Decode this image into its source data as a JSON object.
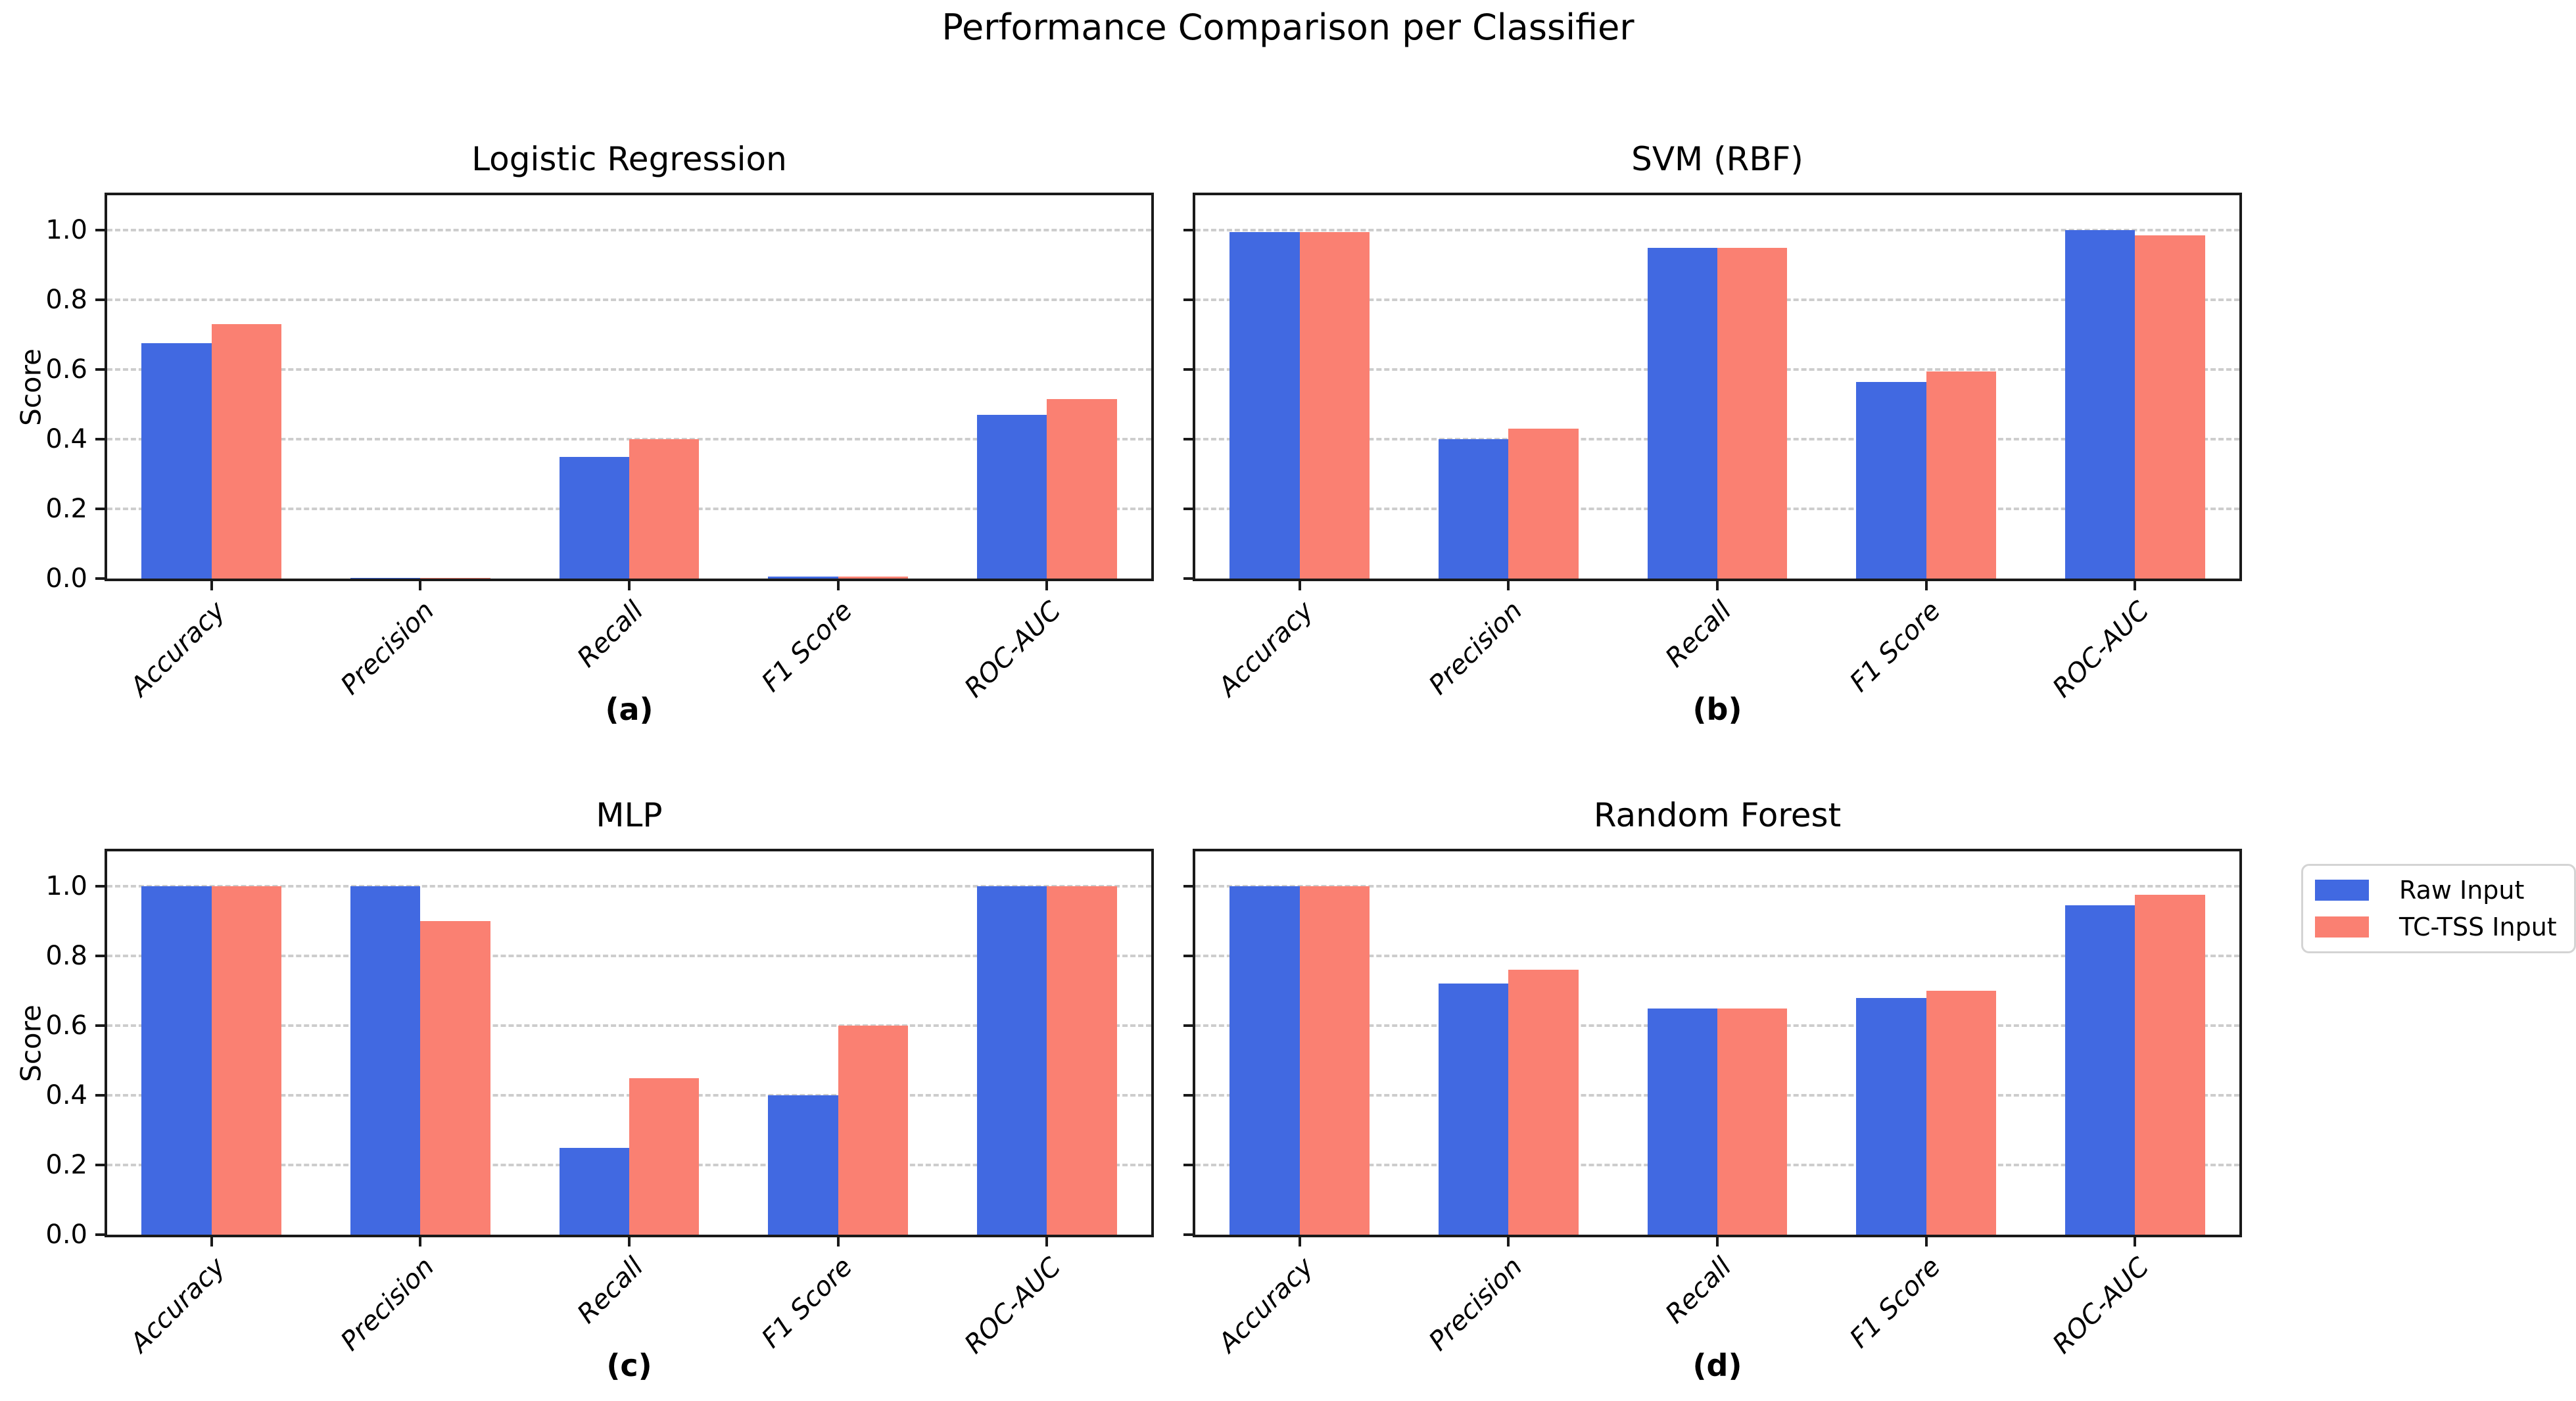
{
  "page": {
    "title": "Performance Comparison per Classifier"
  },
  "axis": {
    "ylabel": "Score",
    "yticks": [
      0.0,
      0.2,
      0.4,
      0.6,
      0.8,
      1.0
    ],
    "ymax": 1.1,
    "grid": "dashed-horizontal"
  },
  "legend": {
    "position": "right-middle",
    "entries": [
      {
        "label": "Raw Input",
        "color": "#4169e1"
      },
      {
        "label": "TC-TSS Input",
        "color": "#fa8072"
      }
    ]
  },
  "chart_data": [
    {
      "type": "bar",
      "title": "Logistic Regression",
      "caption": "(a)",
      "ylabel": "Score",
      "show_ytick_labels": true,
      "categories": [
        "Accuracy",
        "Precision",
        "Recall",
        "F1 Score",
        "ROC-AUC"
      ],
      "series": [
        {
          "name": "Raw Input",
          "color": "#4169e1",
          "values": [
            0.675,
            0.0,
            0.35,
            0.005,
            0.47
          ]
        },
        {
          "name": "TC-TSS Input",
          "color": "#fa8072",
          "values": [
            0.73,
            0.0,
            0.4,
            0.005,
            0.515
          ]
        }
      ],
      "ylim": [
        0,
        1.1
      ],
      "yticks": [
        0.0,
        0.2,
        0.4,
        0.6,
        0.8,
        1.0
      ]
    },
    {
      "type": "bar",
      "title": "SVM (RBF)",
      "caption": "(b)",
      "show_ytick_labels": false,
      "categories": [
        "Accuracy",
        "Precision",
        "Recall",
        "F1 Score",
        "ROC-AUC"
      ],
      "series": [
        {
          "name": "Raw Input",
          "color": "#4169e1",
          "values": [
            0.995,
            0.4,
            0.95,
            0.565,
            1.0
          ]
        },
        {
          "name": "TC-TSS Input",
          "color": "#fa8072",
          "values": [
            0.995,
            0.43,
            0.95,
            0.595,
            0.985
          ]
        }
      ],
      "ylim": [
        0,
        1.1
      ],
      "yticks": [
        0.0,
        0.2,
        0.4,
        0.6,
        0.8,
        1.0
      ]
    },
    {
      "type": "bar",
      "title": "MLP",
      "caption": "(c)",
      "ylabel": "Score",
      "show_ytick_labels": true,
      "categories": [
        "Accuracy",
        "Precision",
        "Recall",
        "F1 Score",
        "ROC-AUC"
      ],
      "series": [
        {
          "name": "Raw Input",
          "color": "#4169e1",
          "values": [
            1.0,
            1.0,
            0.25,
            0.4,
            1.0
          ]
        },
        {
          "name": "TC-TSS Input",
          "color": "#fa8072",
          "values": [
            1.0,
            0.9,
            0.45,
            0.6,
            1.0
          ]
        }
      ],
      "ylim": [
        0,
        1.1
      ],
      "yticks": [
        0.0,
        0.2,
        0.4,
        0.6,
        0.8,
        1.0
      ]
    },
    {
      "type": "bar",
      "title": "Random Forest",
      "caption": "(d)",
      "show_ytick_labels": false,
      "categories": [
        "Accuracy",
        "Precision",
        "Recall",
        "F1 Score",
        "ROC-AUC"
      ],
      "series": [
        {
          "name": "Raw Input",
          "color": "#4169e1",
          "values": [
            1.0,
            0.72,
            0.65,
            0.68,
            0.945
          ]
        },
        {
          "name": "TC-TSS Input",
          "color": "#fa8072",
          "values": [
            1.0,
            0.76,
            0.65,
            0.7,
            0.975
          ]
        }
      ],
      "ylim": [
        0,
        1.1
      ],
      "yticks": [
        0.0,
        0.2,
        0.4,
        0.6,
        0.8,
        1.0
      ]
    }
  ]
}
